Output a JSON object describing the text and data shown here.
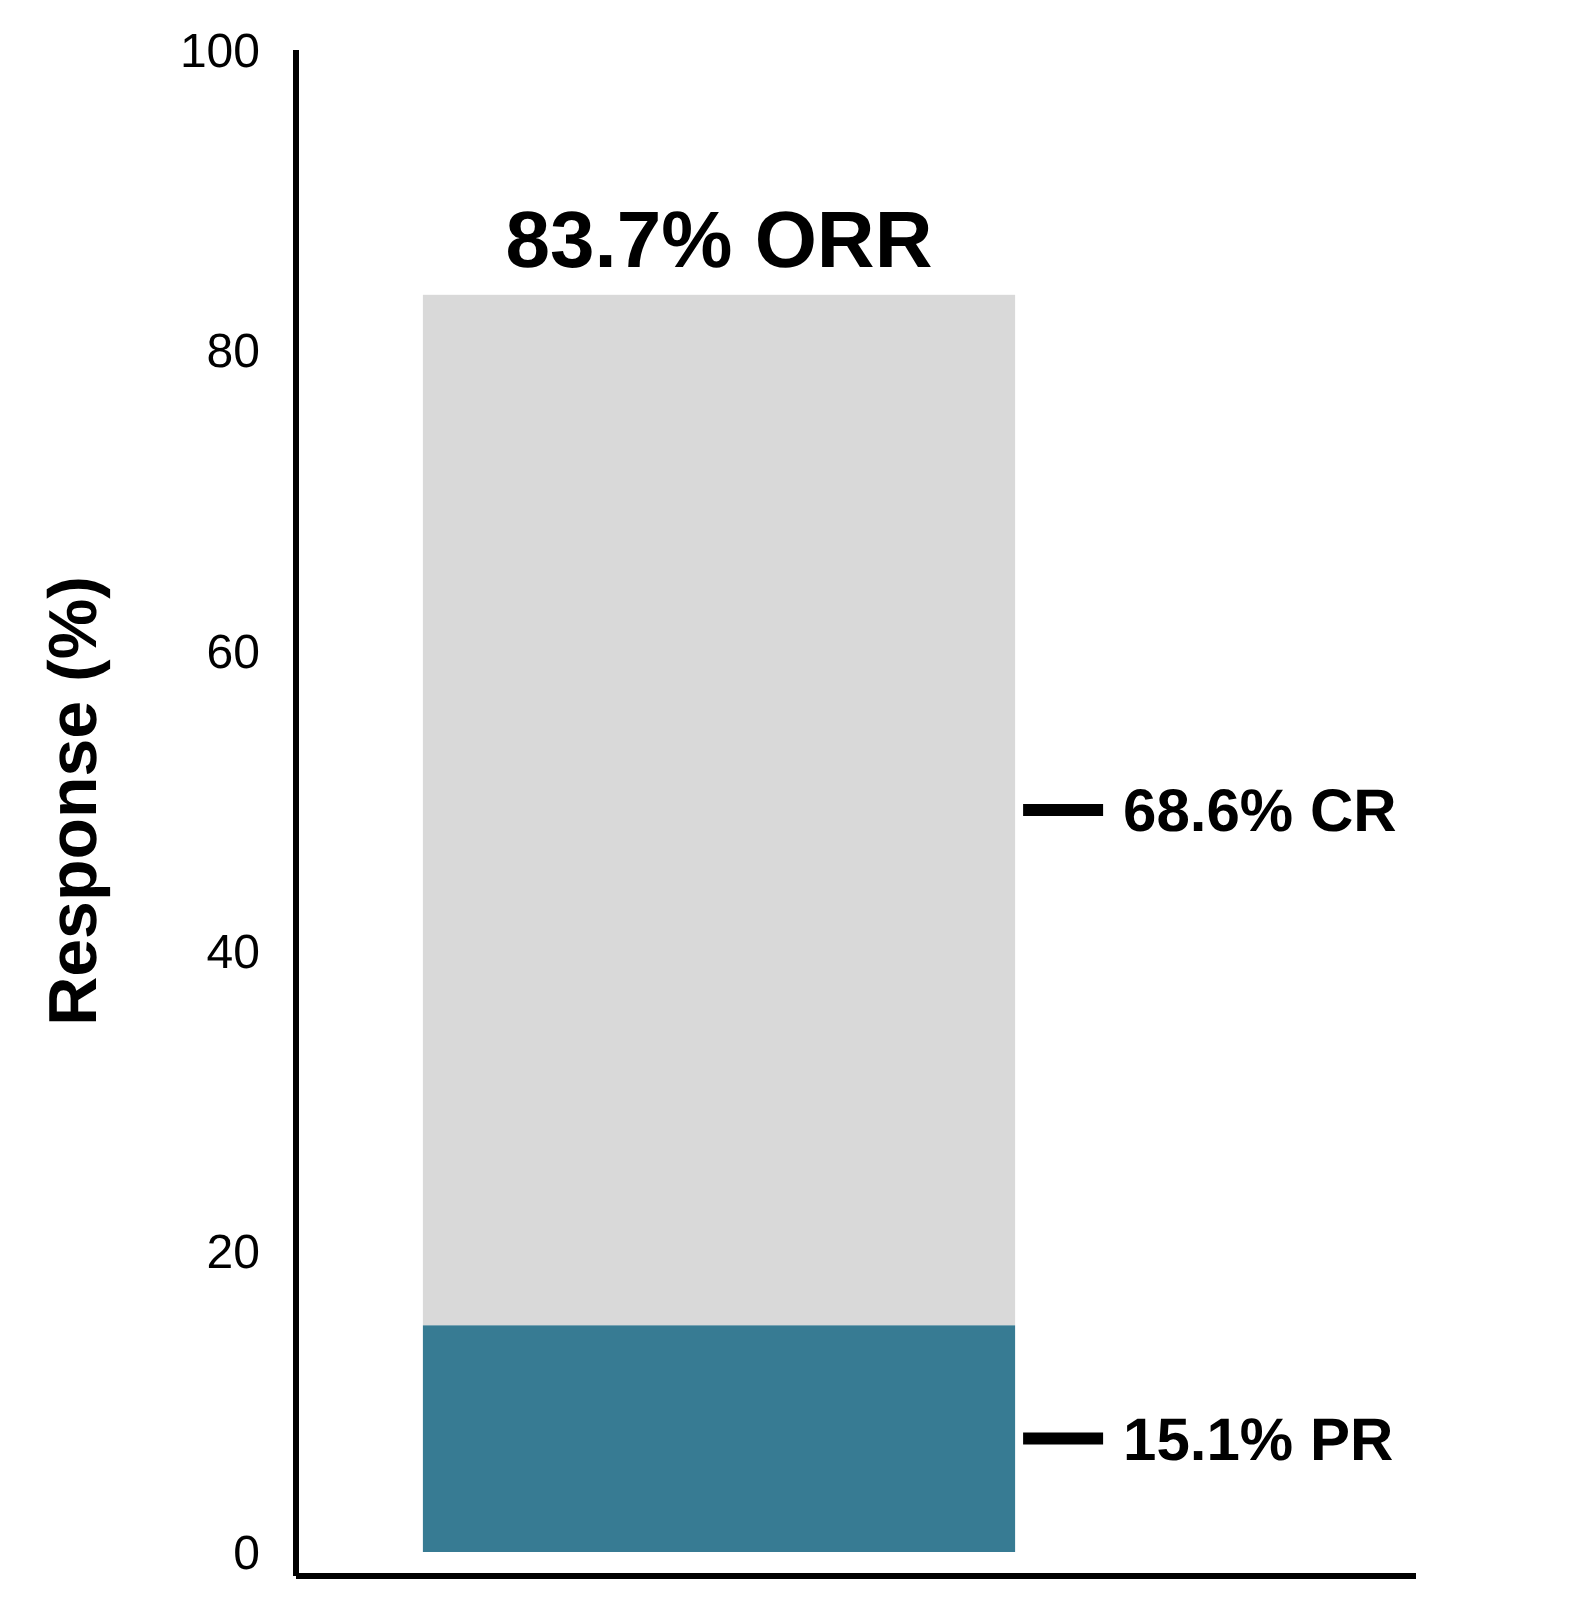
{
  "chart_data": {
    "type": "bar",
    "stacked": true,
    "ylabel": "Response (%)",
    "categories": [
      null
    ],
    "ylim": [
      0,
      100
    ],
    "yticks": [
      0,
      20,
      40,
      60,
      80,
      100
    ],
    "grid": false,
    "series": [
      {
        "color": "#377b93",
        "values": [
          15.1
        ],
        "value_labels": [
          "15.1% PR"
        ]
      },
      {
        "color": "#d9d9d9",
        "values": [
          68.6
        ],
        "value_labels": [
          "68.6% CR"
        ]
      }
    ],
    "totals": [
      "83.7% ORR"
    ]
  }
}
